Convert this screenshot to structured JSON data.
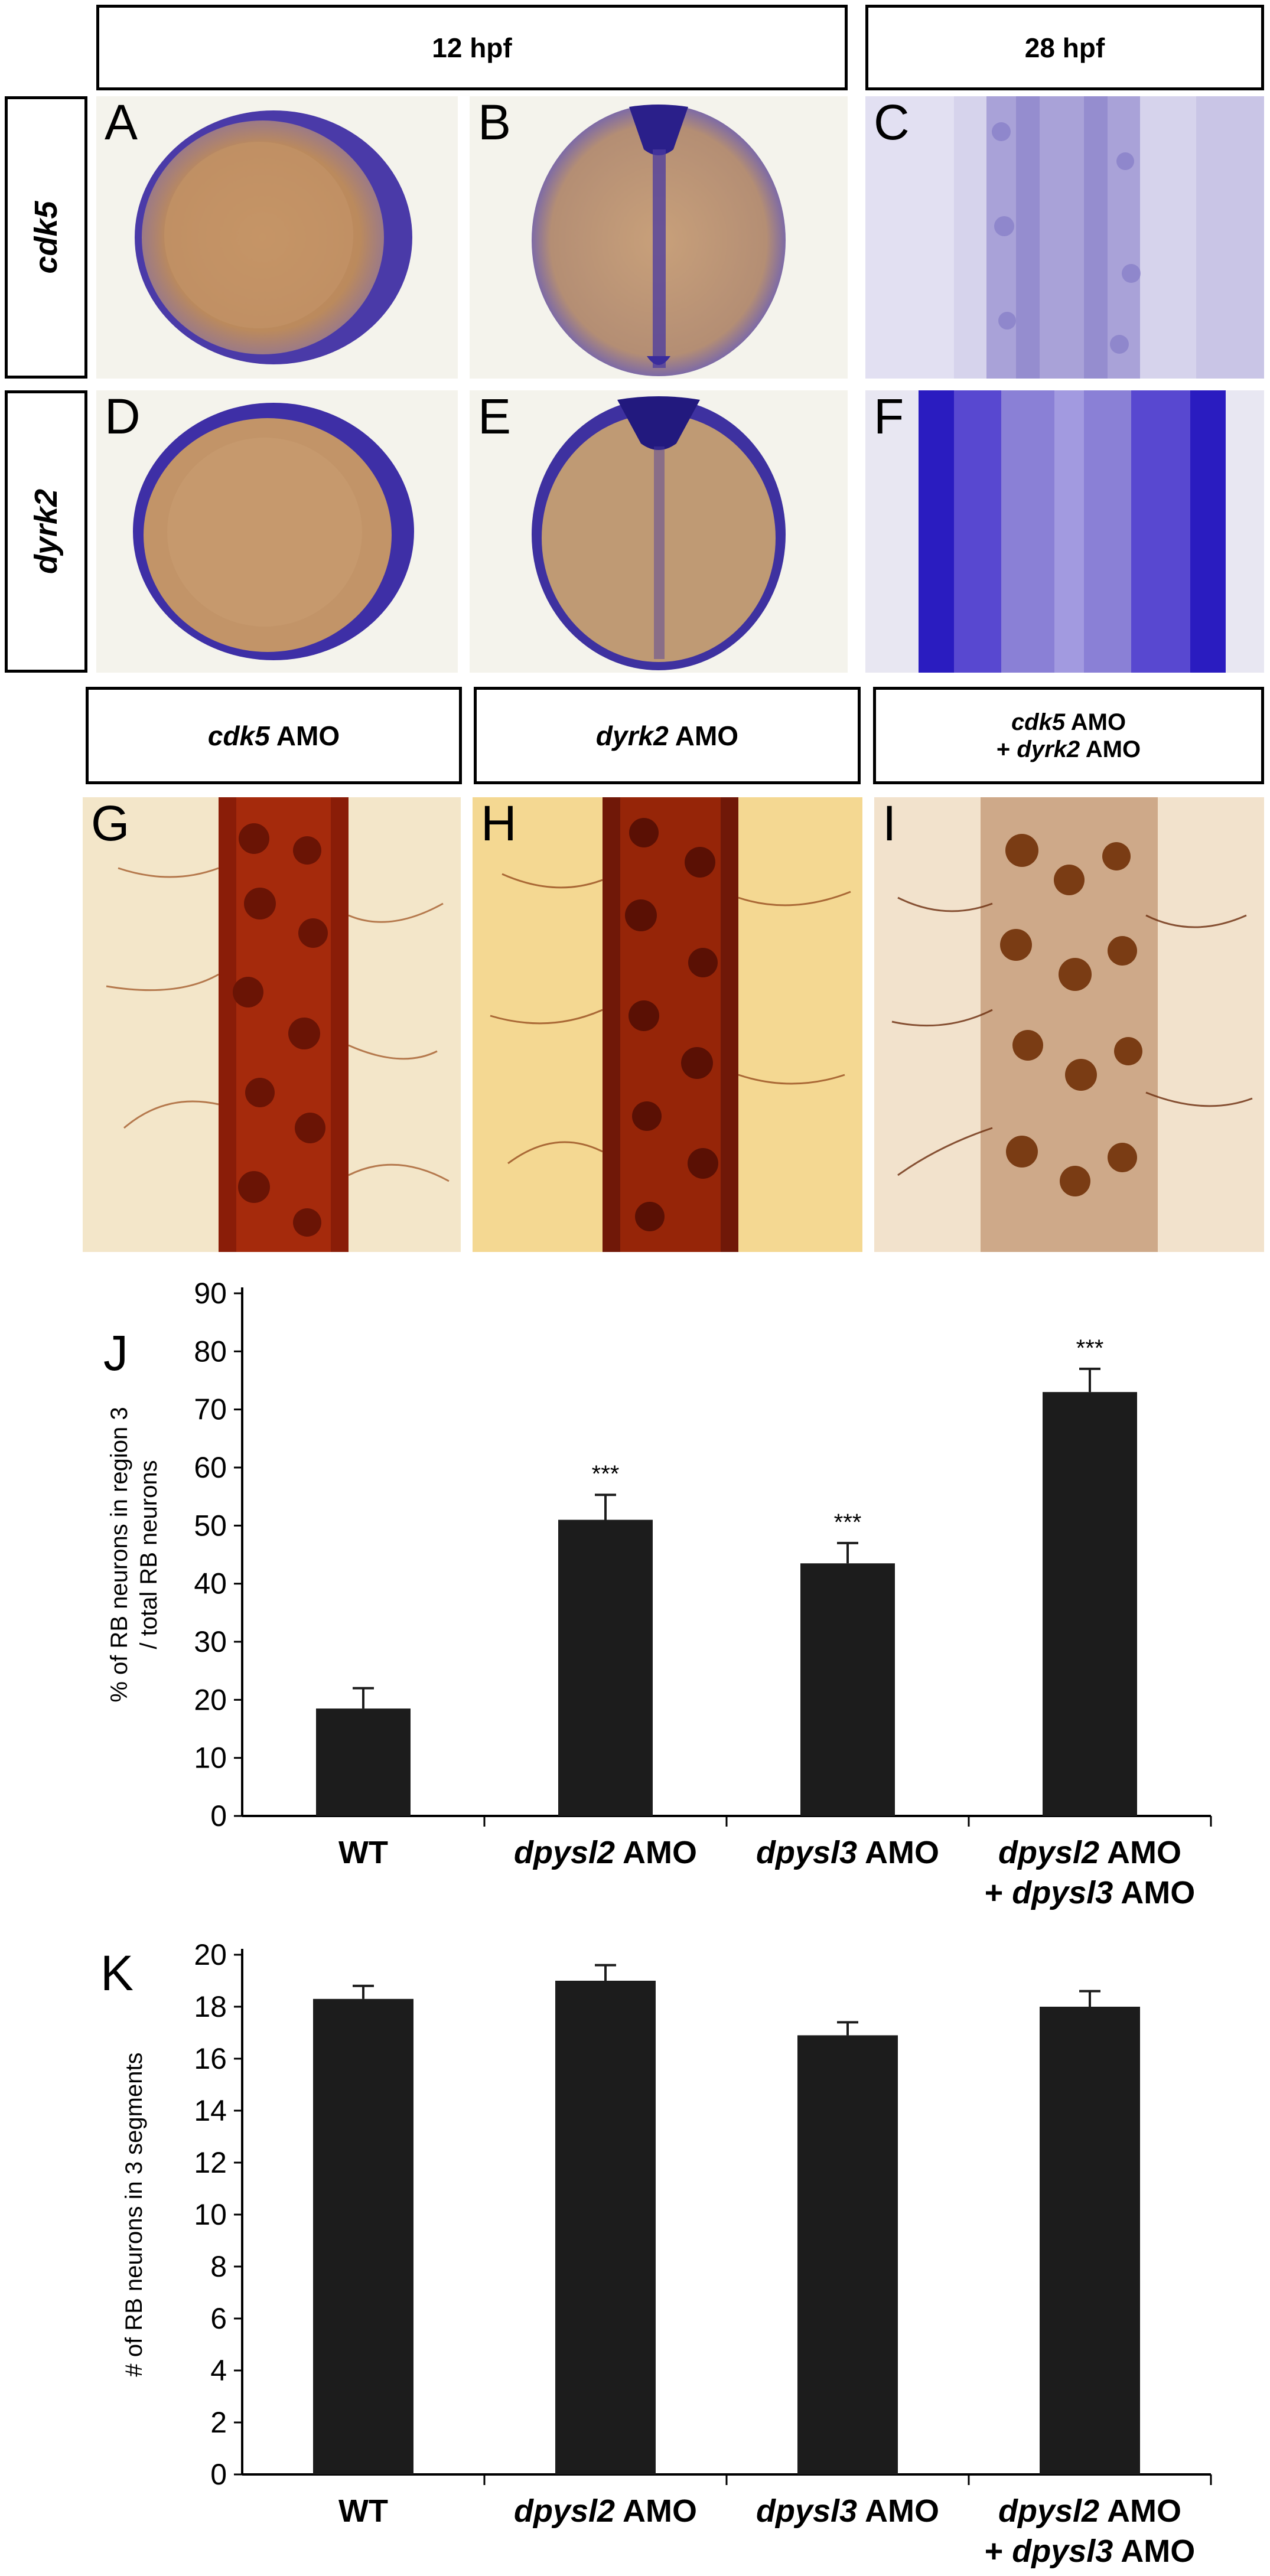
{
  "headers": {
    "hpf12": "12 hpf",
    "hpf28": "28 hpf"
  },
  "rows": {
    "cdk5": "cdk5",
    "dyrk2": "dyrk2"
  },
  "amo_headers": {
    "cdk5": {
      "gene": "cdk5",
      "suffix": " AMO"
    },
    "dyrk2": {
      "gene": "dyrk2",
      "suffix": " AMO"
    },
    "combo_line1": {
      "gene": "cdk5",
      "suffix": " AMO"
    },
    "combo_line2": {
      "prefix": "+ ",
      "gene": "dyrk2",
      "suffix": " AMO"
    }
  },
  "panel_labels": [
    "A",
    "B",
    "C",
    "D",
    "E",
    "F",
    "G",
    "H",
    "I",
    "J",
    "K"
  ],
  "colors": {
    "stain_blue": "#3a2fb8",
    "yolk": "#c89a6a",
    "dab_brown": "#7a2808",
    "bar": "#1c1c1c"
  },
  "chart_data": [
    {
      "type": "bar",
      "panel": "J",
      "ylabel_line1": "% of RB neurons in region 3",
      "ylabel_line2": "/ total RB neurons",
      "ylim": [
        0,
        90
      ],
      "yticks": [
        "0",
        "10",
        "20",
        "30",
        "40",
        "50",
        "60",
        "70",
        "80",
        "90"
      ],
      "categories": [
        {
          "gene": "",
          "suffix": "WT",
          "line2_prefix": "",
          "line2_gene": "",
          "line2_suffix": ""
        },
        {
          "gene": "dpysl2",
          "suffix": " AMO",
          "line2_prefix": "",
          "line2_gene": "",
          "line2_suffix": ""
        },
        {
          "gene": "dpysl3",
          "suffix": " AMO",
          "line2_prefix": "",
          "line2_gene": "",
          "line2_suffix": ""
        },
        {
          "gene": "dpysl2",
          "suffix": " AMO",
          "line2_prefix": "+ ",
          "line2_gene": "dpysl3",
          "line2_suffix": " AMO"
        }
      ],
      "values": [
        18.5,
        51,
        43.5,
        73
      ],
      "errors": [
        3.5,
        4.3,
        3.5,
        4
      ],
      "significance": [
        "",
        "***",
        "***",
        "***"
      ]
    },
    {
      "type": "bar",
      "panel": "K",
      "ylabel_line1": "# of RB neurons in 3 segments",
      "ylabel_line2": "",
      "ylim": [
        0,
        20
      ],
      "yticks": [
        "0",
        "2",
        "4",
        "6",
        "8",
        "10",
        "12",
        "14",
        "16",
        "18",
        "20"
      ],
      "categories": [
        {
          "gene": "",
          "suffix": "WT",
          "line2_prefix": "",
          "line2_gene": "",
          "line2_suffix": ""
        },
        {
          "gene": "dpysl2",
          "suffix": " AMO",
          "line2_prefix": "",
          "line2_gene": "",
          "line2_suffix": ""
        },
        {
          "gene": "dpysl3",
          "suffix": " AMO",
          "line2_prefix": "",
          "line2_gene": "",
          "line2_suffix": ""
        },
        {
          "gene": "dpysl2",
          "suffix": " AMO",
          "line2_prefix": "+ ",
          "line2_gene": "dpysl3",
          "line2_suffix": " AMO"
        }
      ],
      "values": [
        18.3,
        19,
        16.9,
        18
      ],
      "errors": [
        0.5,
        0.6,
        0.5,
        0.6
      ],
      "significance": [
        "",
        "",
        "",
        ""
      ]
    }
  ]
}
